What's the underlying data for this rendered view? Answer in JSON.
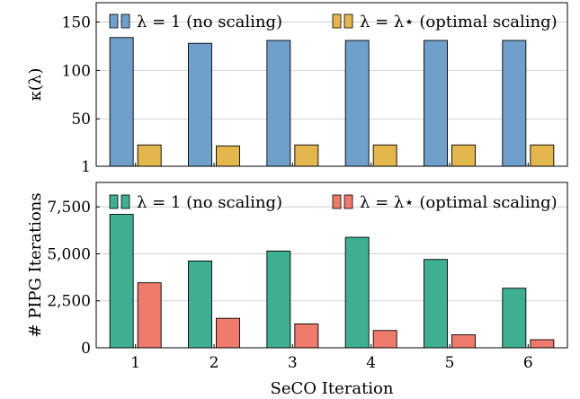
{
  "chart_data": [
    {
      "type": "bar",
      "ylabel": "κ(λ)",
      "ylim": [
        1,
        170
      ],
      "yticks": [
        1,
        50,
        100,
        150
      ],
      "ytick_labels": [
        "1",
        "50",
        "100",
        "150"
      ],
      "categories": [
        "1",
        "2",
        "3",
        "4",
        "5",
        "6"
      ],
      "grid": "horizontal",
      "legend": "top",
      "series": [
        {
          "name": "λ = 1 (no scaling)",
          "color": "#6f9fca",
          "values": [
            134,
            128,
            131,
            131,
            131,
            131
          ]
        },
        {
          "name": "λ = λ⋆ (optimal scaling)",
          "color": "#e3b74d",
          "values": [
            23,
            22,
            23,
            23,
            23,
            23
          ]
        }
      ]
    },
    {
      "type": "bar",
      "ylabel": "# PIPG Iterations",
      "ylim": [
        0,
        8800
      ],
      "yticks": [
        0,
        2500,
        5000,
        7500
      ],
      "ytick_labels": [
        "0",
        "2,500",
        "5,000",
        "7,500"
      ],
      "categories": [
        "1",
        "2",
        "3",
        "4",
        "5",
        "6"
      ],
      "xlabel": "SeCO Iteration",
      "grid": "horizontal",
      "legend": "top",
      "series": [
        {
          "name": "λ = 1 (no scaling)",
          "color": "#3eaf92",
          "values": [
            7100,
            4620,
            5150,
            5880,
            4700,
            3170
          ]
        },
        {
          "name": "λ = λ⋆ (optimal scaling)",
          "color": "#ee7a6b",
          "values": [
            3460,
            1570,
            1270,
            920,
            690,
            430
          ]
        }
      ]
    }
  ]
}
